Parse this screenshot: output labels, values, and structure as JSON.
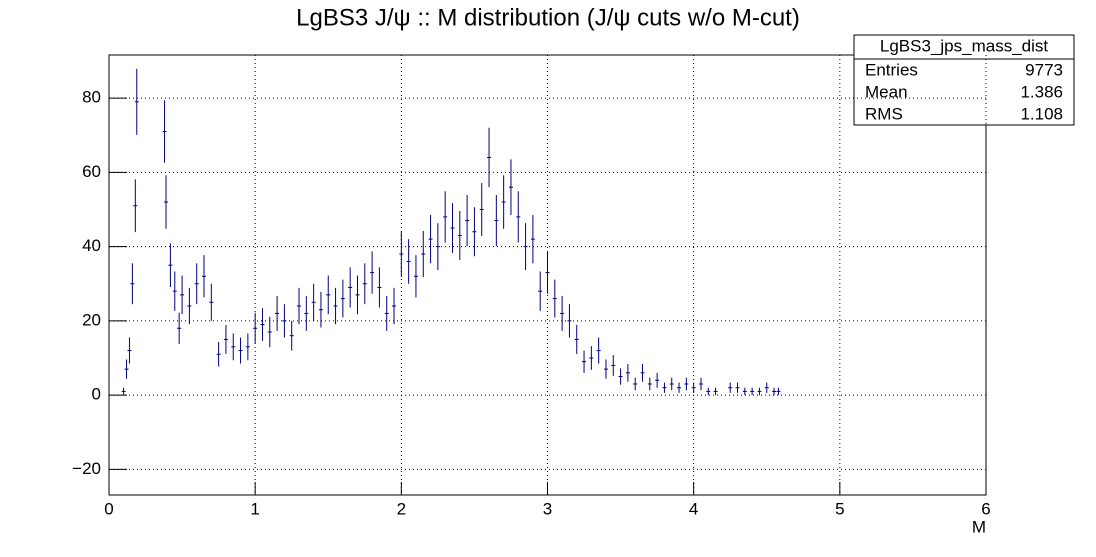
{
  "chart_data": {
    "type": "errorbar",
    "title": "LgBS3 J/ψ :: M distribution (J/ψ cuts w/o M-cut)",
    "x_label": "M",
    "color": "#000080",
    "grid": true,
    "xlim": [
      0,
      6
    ],
    "xticks": [
      0,
      1,
      2,
      3,
      4,
      5,
      6
    ],
    "ylim": [
      -26.9,
      91.6
    ],
    "yticks": [
      {
        "value": -20,
        "label": "−20"
      },
      0,
      20,
      40,
      60,
      80
    ],
    "x": [
      0.1,
      0.12,
      0.14,
      0.16,
      0.18,
      0.19,
      0.38,
      0.39,
      0.42,
      0.45,
      0.48,
      0.5,
      0.55,
      0.6,
      0.65,
      0.7,
      0.75,
      0.8,
      0.85,
      0.9,
      0.95,
      1.0,
      1.05,
      1.1,
      1.15,
      1.2,
      1.25,
      1.3,
      1.35,
      1.4,
      1.45,
      1.5,
      1.55,
      1.6,
      1.65,
      1.7,
      1.75,
      1.8,
      1.85,
      1.9,
      1.95,
      2.0,
      2.05,
      2.1,
      2.15,
      2.2,
      2.25,
      2.3,
      2.35,
      2.4,
      2.45,
      2.5,
      2.55,
      2.6,
      2.65,
      2.7,
      2.75,
      2.8,
      2.85,
      2.9,
      2.95,
      3.0,
      3.05,
      3.1,
      3.15,
      3.2,
      3.25,
      3.3,
      3.35,
      3.4,
      3.45,
      3.5,
      3.55,
      3.6,
      3.65,
      3.7,
      3.75,
      3.8,
      3.85,
      3.9,
      3.95,
      4.0,
      4.05,
      4.1,
      4.15,
      4.25,
      4.3,
      4.35,
      4.4,
      4.45,
      4.5,
      4.55,
      4.58
    ],
    "values": [
      1,
      7,
      12,
      30,
      51,
      79,
      71,
      52,
      35,
      28,
      18,
      27,
      24,
      30,
      32,
      25,
      11,
      15,
      13,
      12,
      13,
      18,
      19,
      17,
      22,
      20,
      16,
      24,
      22,
      25,
      23,
      27,
      24,
      26,
      29,
      27,
      30,
      33,
      29,
      22,
      24,
      38,
      36,
      32,
      38,
      42,
      40,
      48,
      45,
      43,
      47,
      44,
      50,
      64,
      47,
      52,
      56,
      48,
      40,
      42,
      28,
      33,
      26,
      22,
      20,
      15,
      9,
      10,
      12,
      7,
      8,
      5,
      6,
      3,
      6,
      3,
      4,
      2,
      3,
      2,
      3,
      2,
      3,
      1,
      1,
      2,
      2,
      1,
      1,
      1,
      2,
      1,
      1
    ],
    "errors": [
      1,
      2.6,
      3.5,
      5.5,
      7.1,
      8.9,
      8.4,
      7.2,
      5.9,
      5.3,
      4.2,
      5.2,
      4.9,
      5.5,
      5.7,
      5,
      3.3,
      3.9,
      3.6,
      3.5,
      3.6,
      4.2,
      4.4,
      4.1,
      4.7,
      4.5,
      4,
      4.9,
      4.7,
      5,
      4.8,
      5.2,
      4.9,
      5.1,
      5.4,
      5.2,
      5.5,
      5.7,
      5.4,
      4.7,
      4.9,
      6.2,
      6,
      5.7,
      6.2,
      6.5,
      6.3,
      6.9,
      6.7,
      6.6,
      6.9,
      6.6,
      7.1,
      8,
      6.9,
      7.2,
      7.5,
      6.9,
      6.3,
      6.5,
      5.3,
      5.7,
      5.1,
      4.7,
      4.5,
      3.9,
      3,
      3.2,
      3.5,
      2.6,
      2.8,
      2.2,
      2.4,
      1.7,
      2.4,
      1.7,
      2,
      1.4,
      1.7,
      1.4,
      1.7,
      1.4,
      1.7,
      1,
      1,
      1.4,
      1.4,
      1,
      1,
      1,
      1.4,
      1,
      1
    ],
    "stats": {
      "title": "LgBS3_jps_mass_dist",
      "rows": [
        {
          "label": "Entries",
          "value": 9773
        },
        {
          "label": "Mean",
          "value": 1.386
        },
        {
          "label": "RMS",
          "value": 1.108
        }
      ]
    }
  }
}
